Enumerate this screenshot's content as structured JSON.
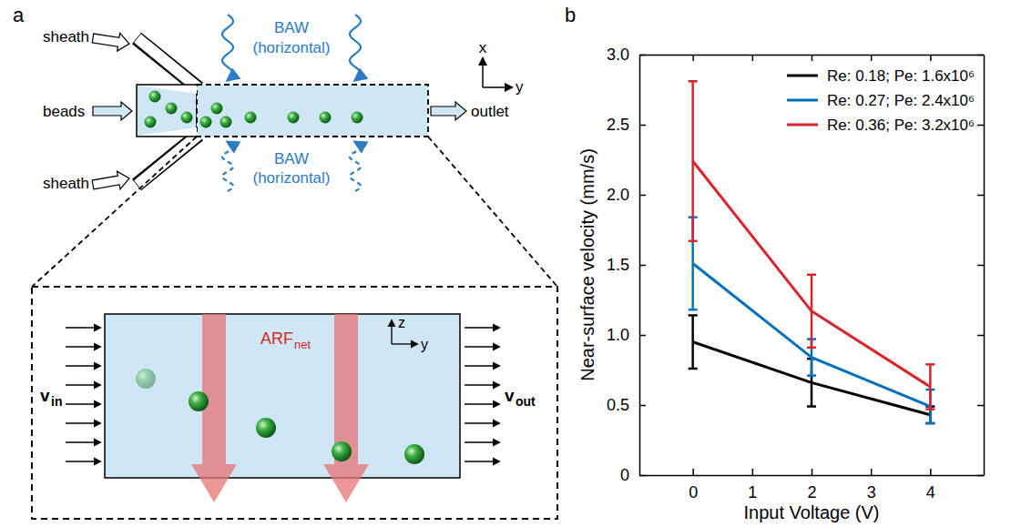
{
  "panel_labels": [
    "a",
    "b"
  ],
  "diagram": {
    "sheath": [
      "sheath",
      "sheath"
    ],
    "beads": "beads",
    "outlet": "outlet",
    "baw_top": [
      "BAW",
      "(horizontal)"
    ],
    "baw_bottom": [
      "BAW",
      "(horizontal)"
    ],
    "axes_top": [
      "x",
      "y"
    ],
    "axes_inset": [
      "z",
      "y"
    ],
    "force": [
      "ARF",
      "net"
    ],
    "v_in": [
      "v",
      "in"
    ],
    "v_out": [
      "v",
      "out"
    ]
  },
  "chart_data": {
    "type": "line",
    "x_label": "Input Voltage (V)",
    "y_label": "Near-surface velocity (mm/s)",
    "x": [
      0,
      2,
      4
    ],
    "xlim": [
      -0.9,
      4.9
    ],
    "xticks": [
      0,
      1,
      2,
      3,
      4
    ],
    "ylim": [
      0,
      3
    ],
    "yticks": [
      0,
      0.5,
      {
        "value": 1,
        "label": "1.0"
      },
      1.5,
      {
        "value": 2,
        "label": "2.0"
      },
      2.5,
      {
        "value": 3,
        "label": "3.0"
      }
    ],
    "grid": false,
    "legend": "upper right",
    "series": [
      {
        "name": "Re: 0.18; Pe: 1.6x10⁶",
        "color": "#000000",
        "values": [
          0.95,
          0.66,
          0.43
        ],
        "errors": [
          0.19,
          0.17,
          0.06
        ]
      },
      {
        "name": "Re: 0.27; Pe: 2.4x10⁶",
        "color": "#0072bd",
        "values": [
          1.51,
          0.84,
          0.49
        ],
        "errors": [
          0.33,
          0.13,
          0.12
        ]
      },
      {
        "name": "Re: 0.36; Pe: 3.2x10⁶",
        "color": "#d7262b",
        "values": [
          2.24,
          1.17,
          0.63
        ],
        "errors": [
          0.57,
          0.26,
          0.16
        ]
      }
    ]
  }
}
